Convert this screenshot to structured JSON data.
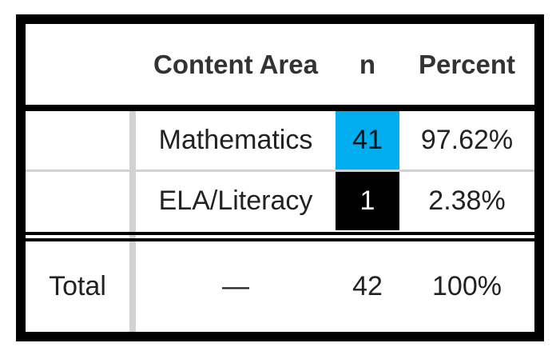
{
  "table": {
    "header": {
      "stub": "",
      "content_area": "Content Area",
      "n": "n",
      "percent": "Percent"
    },
    "rows": [
      {
        "stub": "",
        "content_area": "Mathematics",
        "n": "41",
        "percent": "97.62%",
        "n_highlight": "#00adef",
        "n_text_color": "#111111"
      },
      {
        "stub": "",
        "content_area": "ELA/Literacy",
        "n": "1",
        "percent": "2.38%",
        "n_highlight": "#000000",
        "n_text_color": "#ffffff"
      }
    ],
    "total": {
      "stub": "Total",
      "content_area": "—",
      "n": "42",
      "percent": "100%"
    }
  }
}
